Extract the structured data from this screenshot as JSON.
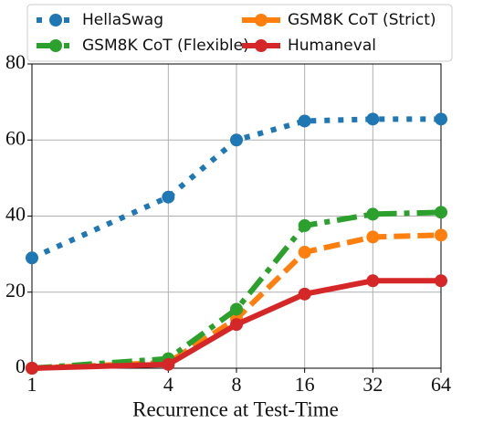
{
  "chart_data": {
    "type": "line",
    "x_label": "Recurrence at Test-Time",
    "x": [
      1,
      4,
      8,
      16,
      32,
      64
    ],
    "xscale": "log",
    "xlim": [
      1,
      64
    ],
    "xticks": [
      1,
      4,
      8,
      16,
      32,
      64
    ],
    "ylim": [
      0,
      80
    ],
    "yticks": [
      0,
      20,
      40,
      60,
      80
    ],
    "grid": true,
    "legend": "top",
    "series": [
      {
        "name": "HellaSwag",
        "color": "#1f77b4",
        "style": "dotted",
        "values": [
          29,
          45,
          60,
          65,
          65.5,
          65.5
        ]
      },
      {
        "name": "GSM8K CoT (Strict)",
        "color": "#ff7f0e",
        "style": "dashed",
        "values": [
          0,
          1.5,
          13,
          30.5,
          34.5,
          35
        ]
      },
      {
        "name": "GSM8K CoT (Flexible)",
        "color": "#2ca02c",
        "style": "dashdot",
        "values": [
          0,
          2.5,
          15.5,
          37.5,
          40.5,
          41
        ]
      },
      {
        "name": "Humaneval",
        "color": "#d62728",
        "style": "solid",
        "values": [
          0,
          1,
          11.5,
          19.5,
          23,
          23
        ]
      }
    ]
  }
}
